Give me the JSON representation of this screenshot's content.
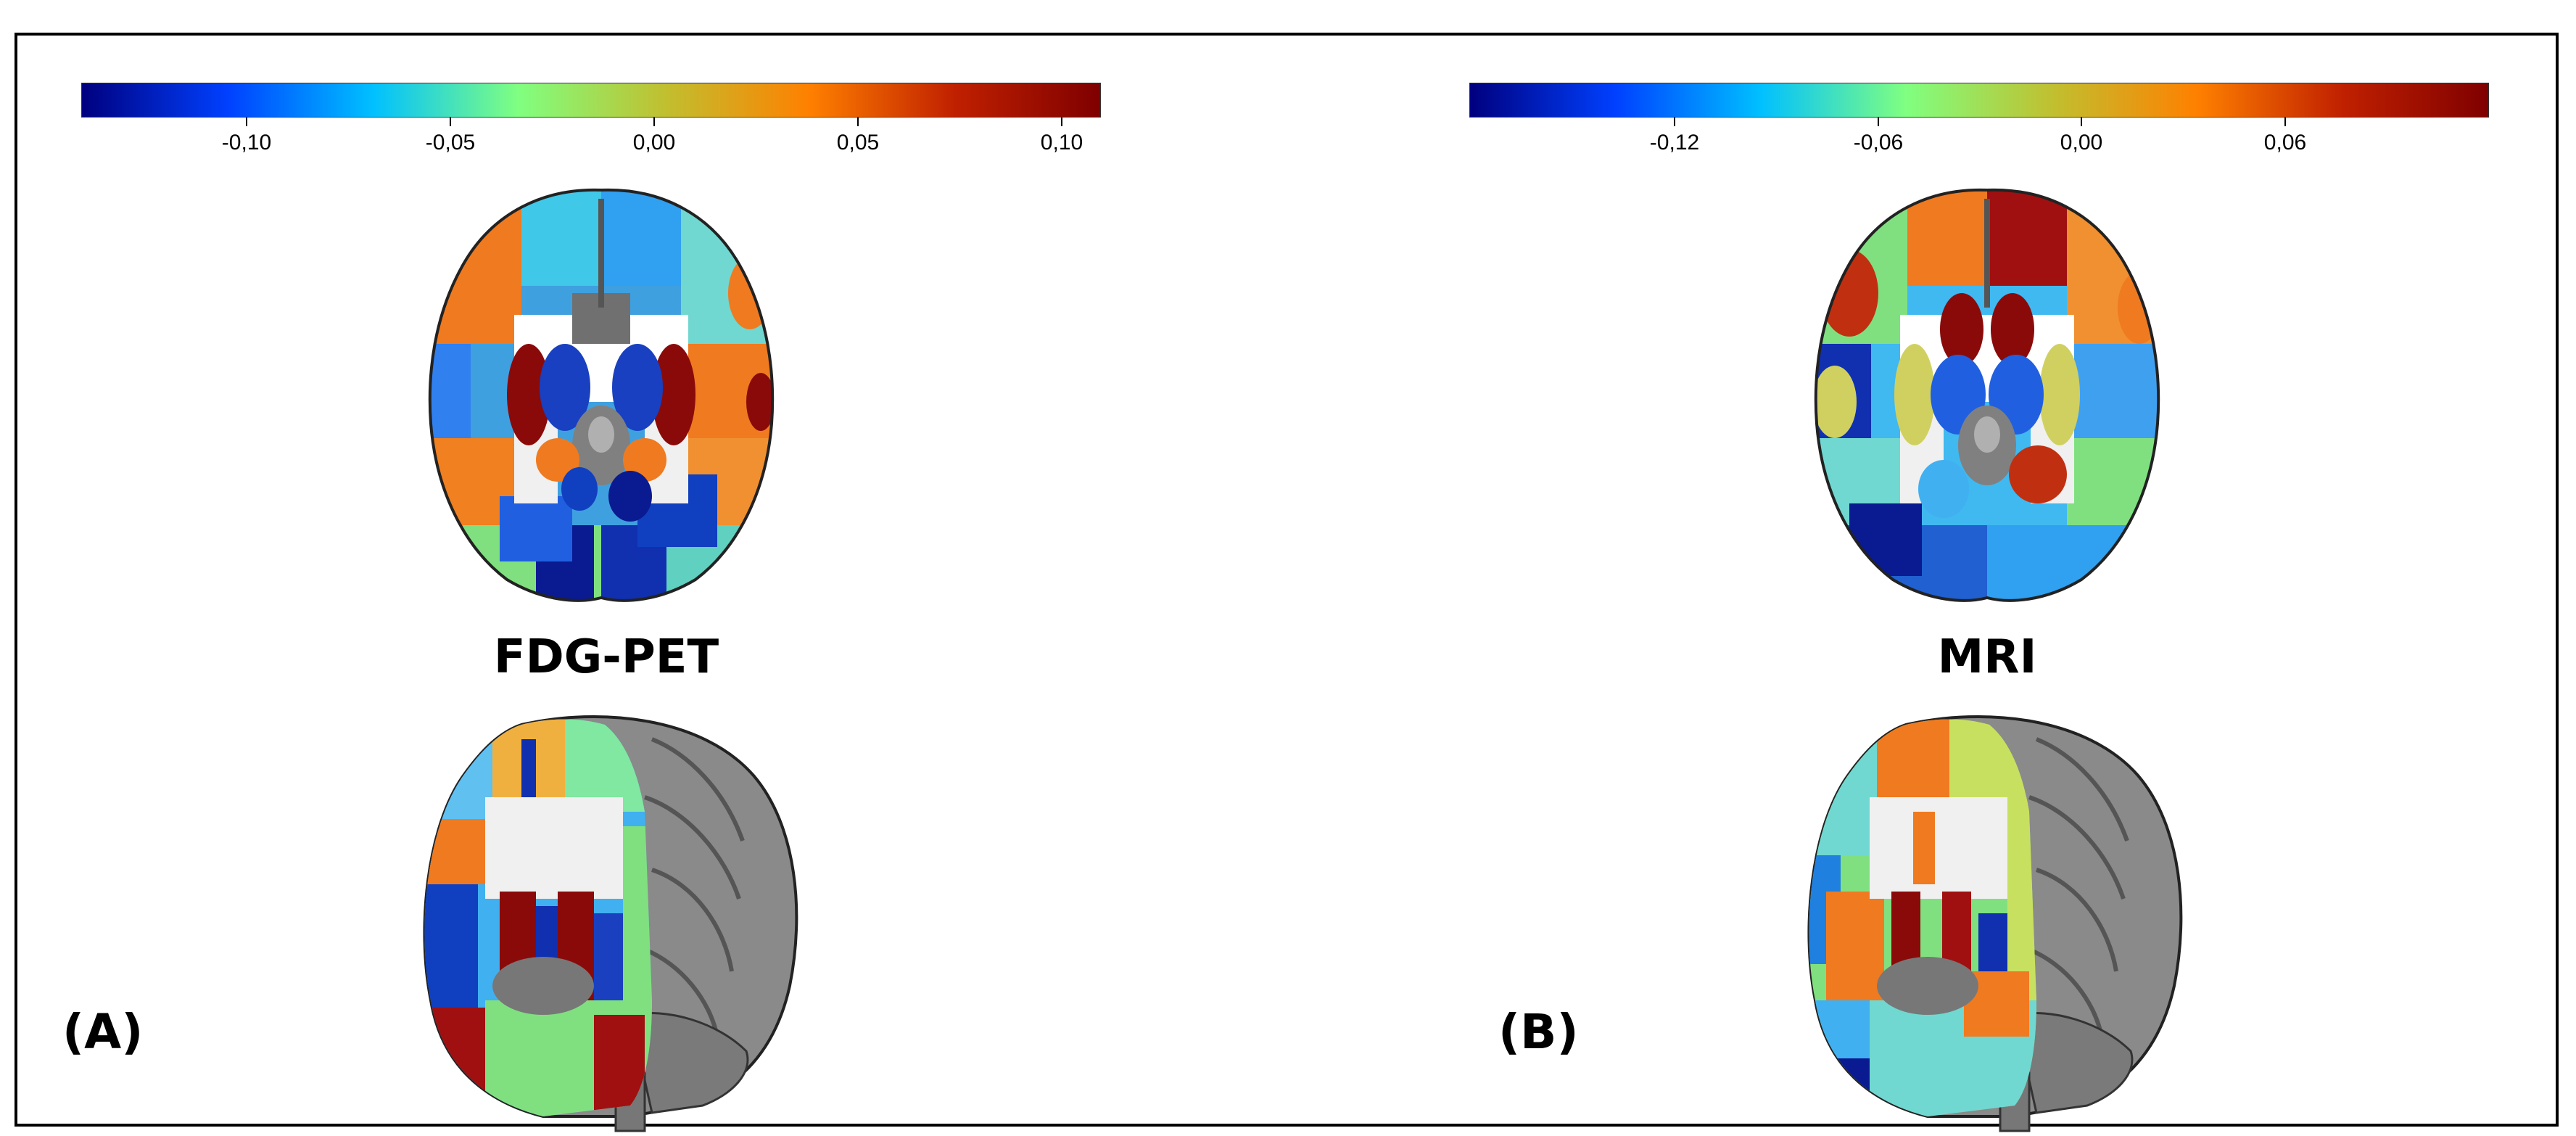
{
  "panels": [
    {
      "letter": "(A)",
      "modality": "FDG-PET",
      "colorbar": {
        "ticks": [
          "-0,10",
          "-0,05",
          "0,00",
          "0,05",
          "0,10"
        ],
        "tick_values": [
          -0.1,
          -0.05,
          0.0,
          0.05,
          0.1
        ],
        "range": [
          -0.14,
          0.11
        ]
      }
    },
    {
      "letter": "(B)",
      "modality": "MRI",
      "colorbar": {
        "ticks": [
          "-0,12",
          "-0,06",
          "0,00",
          "0,06"
        ],
        "tick_values": [
          -0.12,
          -0.06,
          0.0,
          0.06
        ],
        "range": [
          -0.18,
          0.12
        ]
      }
    }
  ],
  "colormap": [
    "#00007f",
    "#0040ff",
    "#00c0ff",
    "#80ff80",
    "#c0c030",
    "#ff8000",
    "#c02000",
    "#7f0000"
  ]
}
